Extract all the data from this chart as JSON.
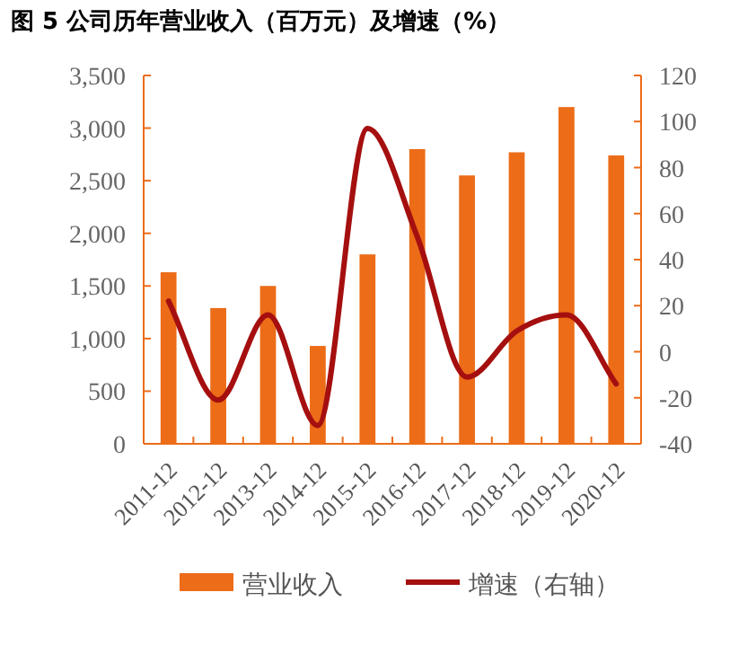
{
  "chart_data": {
    "type": "bar",
    "title": "图 5 公司历年营业收入（百万元）及增速（%）",
    "categories": [
      "2011-12",
      "2012-12",
      "2013-12",
      "2014-12",
      "2015-12",
      "2016-12",
      "2017-12",
      "2018-12",
      "2019-12",
      "2020-12"
    ],
    "series": [
      {
        "name": "营业收入",
        "color": "#ec6c18",
        "values": [
          1630,
          1290,
          1500,
          930,
          1800,
          2800,
          2550,
          2770,
          3200,
          2740
        ]
      },
      {
        "name": "增速（右轴）",
        "type": "line",
        "axis": "y2",
        "color": "#a50f0f",
        "values": [
          22,
          -21,
          16,
          -32,
          97,
          50,
          -11,
          9,
          16,
          -14
        ]
      }
    ],
    "ylim": [
      0,
      3500
    ],
    "yticks": [
      0,
      {
        "value": 500,
        "label": "500"
      },
      {
        "value": 1000,
        "label": "1,000"
      },
      {
        "value": 1500,
        "label": "1,500"
      },
      {
        "value": 2000,
        "label": "2,000"
      },
      {
        "value": 2500,
        "label": "2,500"
      },
      {
        "value": 3000,
        "label": "3,000"
      },
      {
        "value": 3500,
        "label": "3,500"
      }
    ],
    "y2lim": [
      -40,
      120
    ],
    "y2ticks": [
      -40,
      -20,
      0,
      20,
      40,
      60,
      80,
      100,
      120
    ],
    "grid": false,
    "legend": "bottom",
    "marker": "none",
    "line_style": "solid"
  }
}
